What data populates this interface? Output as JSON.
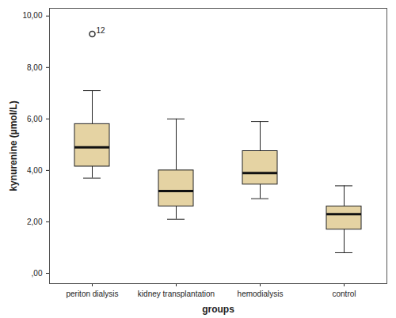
{
  "chart_data": {
    "type": "box",
    "x_label": "groups",
    "y_label": "kynurenine (µmol/L)",
    "categories": [
      "periton dialysis",
      "kidney transplantation",
      "hemodialysis",
      "control"
    ],
    "min": [
      3.7,
      2.1,
      2.9,
      0.8
    ],
    "q1": [
      4.15,
      2.6,
      3.45,
      1.7
    ],
    "median": [
      4.9,
      3.2,
      3.9,
      2.3
    ],
    "q3": [
      5.8,
      4.0,
      4.75,
      2.6
    ],
    "max": [
      7.1,
      6.0,
      5.9,
      3.4
    ],
    "outliers": [
      {
        "category": "periton dialysis",
        "value": 9.3,
        "label": "12"
      }
    ],
    "color": "#e5d3a3",
    "ylim": [
      -0.4,
      10.3
    ],
    "yticks": [
      {
        "value": 0,
        "label": ",00"
      },
      {
        "value": 2,
        "label": "2,00"
      },
      {
        "value": 4,
        "label": "4,00"
      },
      {
        "value": 6,
        "label": "6,00"
      },
      {
        "value": 8,
        "label": "8,00"
      },
      {
        "value": 10,
        "label": "10,00"
      }
    ],
    "grid": false
  }
}
